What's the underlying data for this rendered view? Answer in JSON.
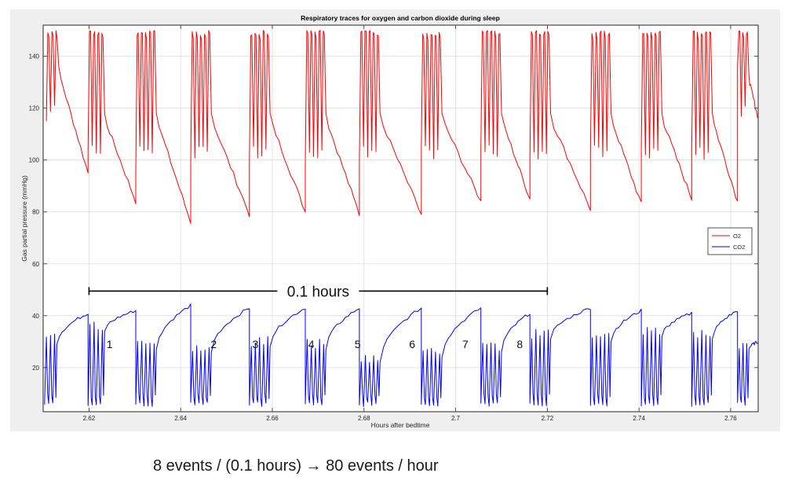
{
  "chart_data": {
    "type": "line",
    "title": "Respiratory traces for oxygen and carbon dioxide during sleep",
    "xlabel": "Hours after bedtime",
    "ylabel": "Gas partial pressure (mmHg)",
    "xlim": [
      2.61,
      2.766
    ],
    "ylim": [
      3,
      152
    ],
    "x_ticks": [
      2.62,
      2.64,
      2.66,
      2.68,
      2.7,
      2.72,
      2.74,
      2.76
    ],
    "x_tick_labels": [
      "2.62",
      "2.64",
      "2.66",
      "2.68",
      "2.7",
      "2.72",
      "2.74",
      "2.76"
    ],
    "y_ticks": [
      20,
      40,
      60,
      80,
      100,
      120,
      140
    ],
    "y_tick_labels": [
      "20",
      "40",
      "60",
      "80",
      "100",
      "120",
      "140"
    ],
    "grid": true,
    "legend_position": "right",
    "series": [
      {
        "name": "O2",
        "color": "#ff0000",
        "cycles": [
          {
            "burst_start": 2.6107,
            "breaths": 3,
            "peak": 150,
            "min_low": 118,
            "drift_to": 95,
            "end": 2.6198
          },
          {
            "burst_start": 2.6198,
            "breaths": 4,
            "peak": 150,
            "min_low": 100,
            "drift_to": 84,
            "end": 2.6302
          },
          {
            "burst_start": 2.6302,
            "breaths": 5,
            "peak": 150,
            "min_low": 100,
            "drift_to": 76,
            "end": 2.6422
          },
          {
            "burst_start": 2.6422,
            "breaths": 5,
            "peak": 150,
            "min_low": 100,
            "drift_to": 79,
            "end": 2.655
          },
          {
            "burst_start": 2.655,
            "breaths": 5,
            "peak": 150,
            "min_low": 100,
            "drift_to": 80,
            "end": 2.6672
          },
          {
            "burst_start": 2.6672,
            "breaths": 5,
            "peak": 150,
            "min_low": 100,
            "drift_to": 79,
            "end": 2.679
          },
          {
            "burst_start": 2.679,
            "breaths": 5,
            "peak": 150,
            "min_low": 100,
            "drift_to": 79,
            "end": 2.6925
          },
          {
            "burst_start": 2.6925,
            "breaths": 5,
            "peak": 150,
            "min_low": 100,
            "drift_to": 84,
            "end": 2.7055
          },
          {
            "burst_start": 2.7055,
            "breaths": 5,
            "peak": 150,
            "min_low": 100,
            "drift_to": 85,
            "end": 2.7162
          },
          {
            "burst_start": 2.7162,
            "breaths": 5,
            "peak": 150,
            "min_low": 100,
            "drift_to": 81,
            "end": 2.7294
          },
          {
            "burst_start": 2.7294,
            "breaths": 5,
            "peak": 150,
            "min_low": 100,
            "drift_to": 83,
            "end": 2.7405
          },
          {
            "burst_start": 2.7405,
            "breaths": 5,
            "peak": 150,
            "min_low": 100,
            "drift_to": 85,
            "end": 2.7515
          },
          {
            "burst_start": 2.7515,
            "breaths": 5,
            "peak": 150,
            "min_low": 100,
            "drift_to": 84,
            "end": 2.7615
          },
          {
            "burst_start": 2.7615,
            "breaths": 3,
            "peak": 150,
            "min_low": 115,
            "drift_to": 116,
            "end": 2.766
          }
        ]
      },
      {
        "name": "CO2",
        "color": "#0000ff",
        "cycles": [
          {
            "burst_start": 2.6103,
            "breaths": 3,
            "trough": 5,
            "max_high": 33,
            "drift_to": 41,
            "end": 2.6198
          },
          {
            "burst_start": 2.6198,
            "breaths": 4,
            "trough": 5,
            "max_high": 38,
            "drift_to": 42,
            "end": 2.6302
          },
          {
            "burst_start": 2.6302,
            "breaths": 5,
            "trough": 5,
            "max_high": 31,
            "drift_to": 44,
            "end": 2.6422
          },
          {
            "burst_start": 2.6422,
            "breaths": 5,
            "trough": 5,
            "max_high": 30,
            "drift_to": 43,
            "end": 2.655
          },
          {
            "burst_start": 2.655,
            "breaths": 5,
            "trough": 5,
            "max_high": 32,
            "drift_to": 43,
            "end": 2.6672
          },
          {
            "burst_start": 2.6672,
            "breaths": 5,
            "trough": 5,
            "max_high": 31,
            "drift_to": 43,
            "end": 2.679
          },
          {
            "burst_start": 2.679,
            "breaths": 5,
            "trough": 5,
            "max_high": 26,
            "drift_to": 43,
            "end": 2.6925
          },
          {
            "burst_start": 2.6925,
            "breaths": 5,
            "trough": 5,
            "max_high": 28,
            "drift_to": 43,
            "end": 2.7055
          },
          {
            "burst_start": 2.7055,
            "breaths": 5,
            "trough": 5,
            "max_high": 30,
            "drift_to": 41,
            "end": 2.7162
          },
          {
            "burst_start": 2.7162,
            "breaths": 5,
            "trough": 5,
            "max_high": 35,
            "drift_to": 43,
            "end": 2.7294
          },
          {
            "burst_start": 2.7294,
            "breaths": 5,
            "trough": 5,
            "max_high": 34,
            "drift_to": 42,
            "end": 2.7405
          },
          {
            "burst_start": 2.7405,
            "breaths": 5,
            "trough": 5,
            "max_high": 36,
            "drift_to": 41,
            "end": 2.7515
          },
          {
            "burst_start": 2.7515,
            "breaths": 5,
            "trough": 5,
            "max_high": 35,
            "drift_to": 42,
            "end": 2.7615
          },
          {
            "burst_start": 2.7615,
            "breaths": 3,
            "trough": 5,
            "max_high": 31,
            "drift_to": 30,
            "end": 2.766
          }
        ]
      }
    ],
    "annotations": {
      "span": {
        "x_start": 2.62,
        "x_end": 2.72,
        "y": 49.5,
        "label": "0.1 hours"
      },
      "event_labels": [
        {
          "text": "1",
          "x": 2.6245,
          "y": 29
        },
        {
          "text": "2",
          "x": 2.6472,
          "y": 29
        },
        {
          "text": "3",
          "x": 2.6563,
          "y": 29
        },
        {
          "text": "4",
          "x": 2.6685,
          "y": 29
        },
        {
          "text": "5",
          "x": 2.6786,
          "y": 29
        },
        {
          "text": "6",
          "x": 2.6905,
          "y": 29
        },
        {
          "text": "7",
          "x": 2.7021,
          "y": 29
        },
        {
          "text": "8",
          "x": 2.714,
          "y": 29
        }
      ]
    }
  },
  "caption": "8 events / (0.1 hours) → 80 events / hour"
}
